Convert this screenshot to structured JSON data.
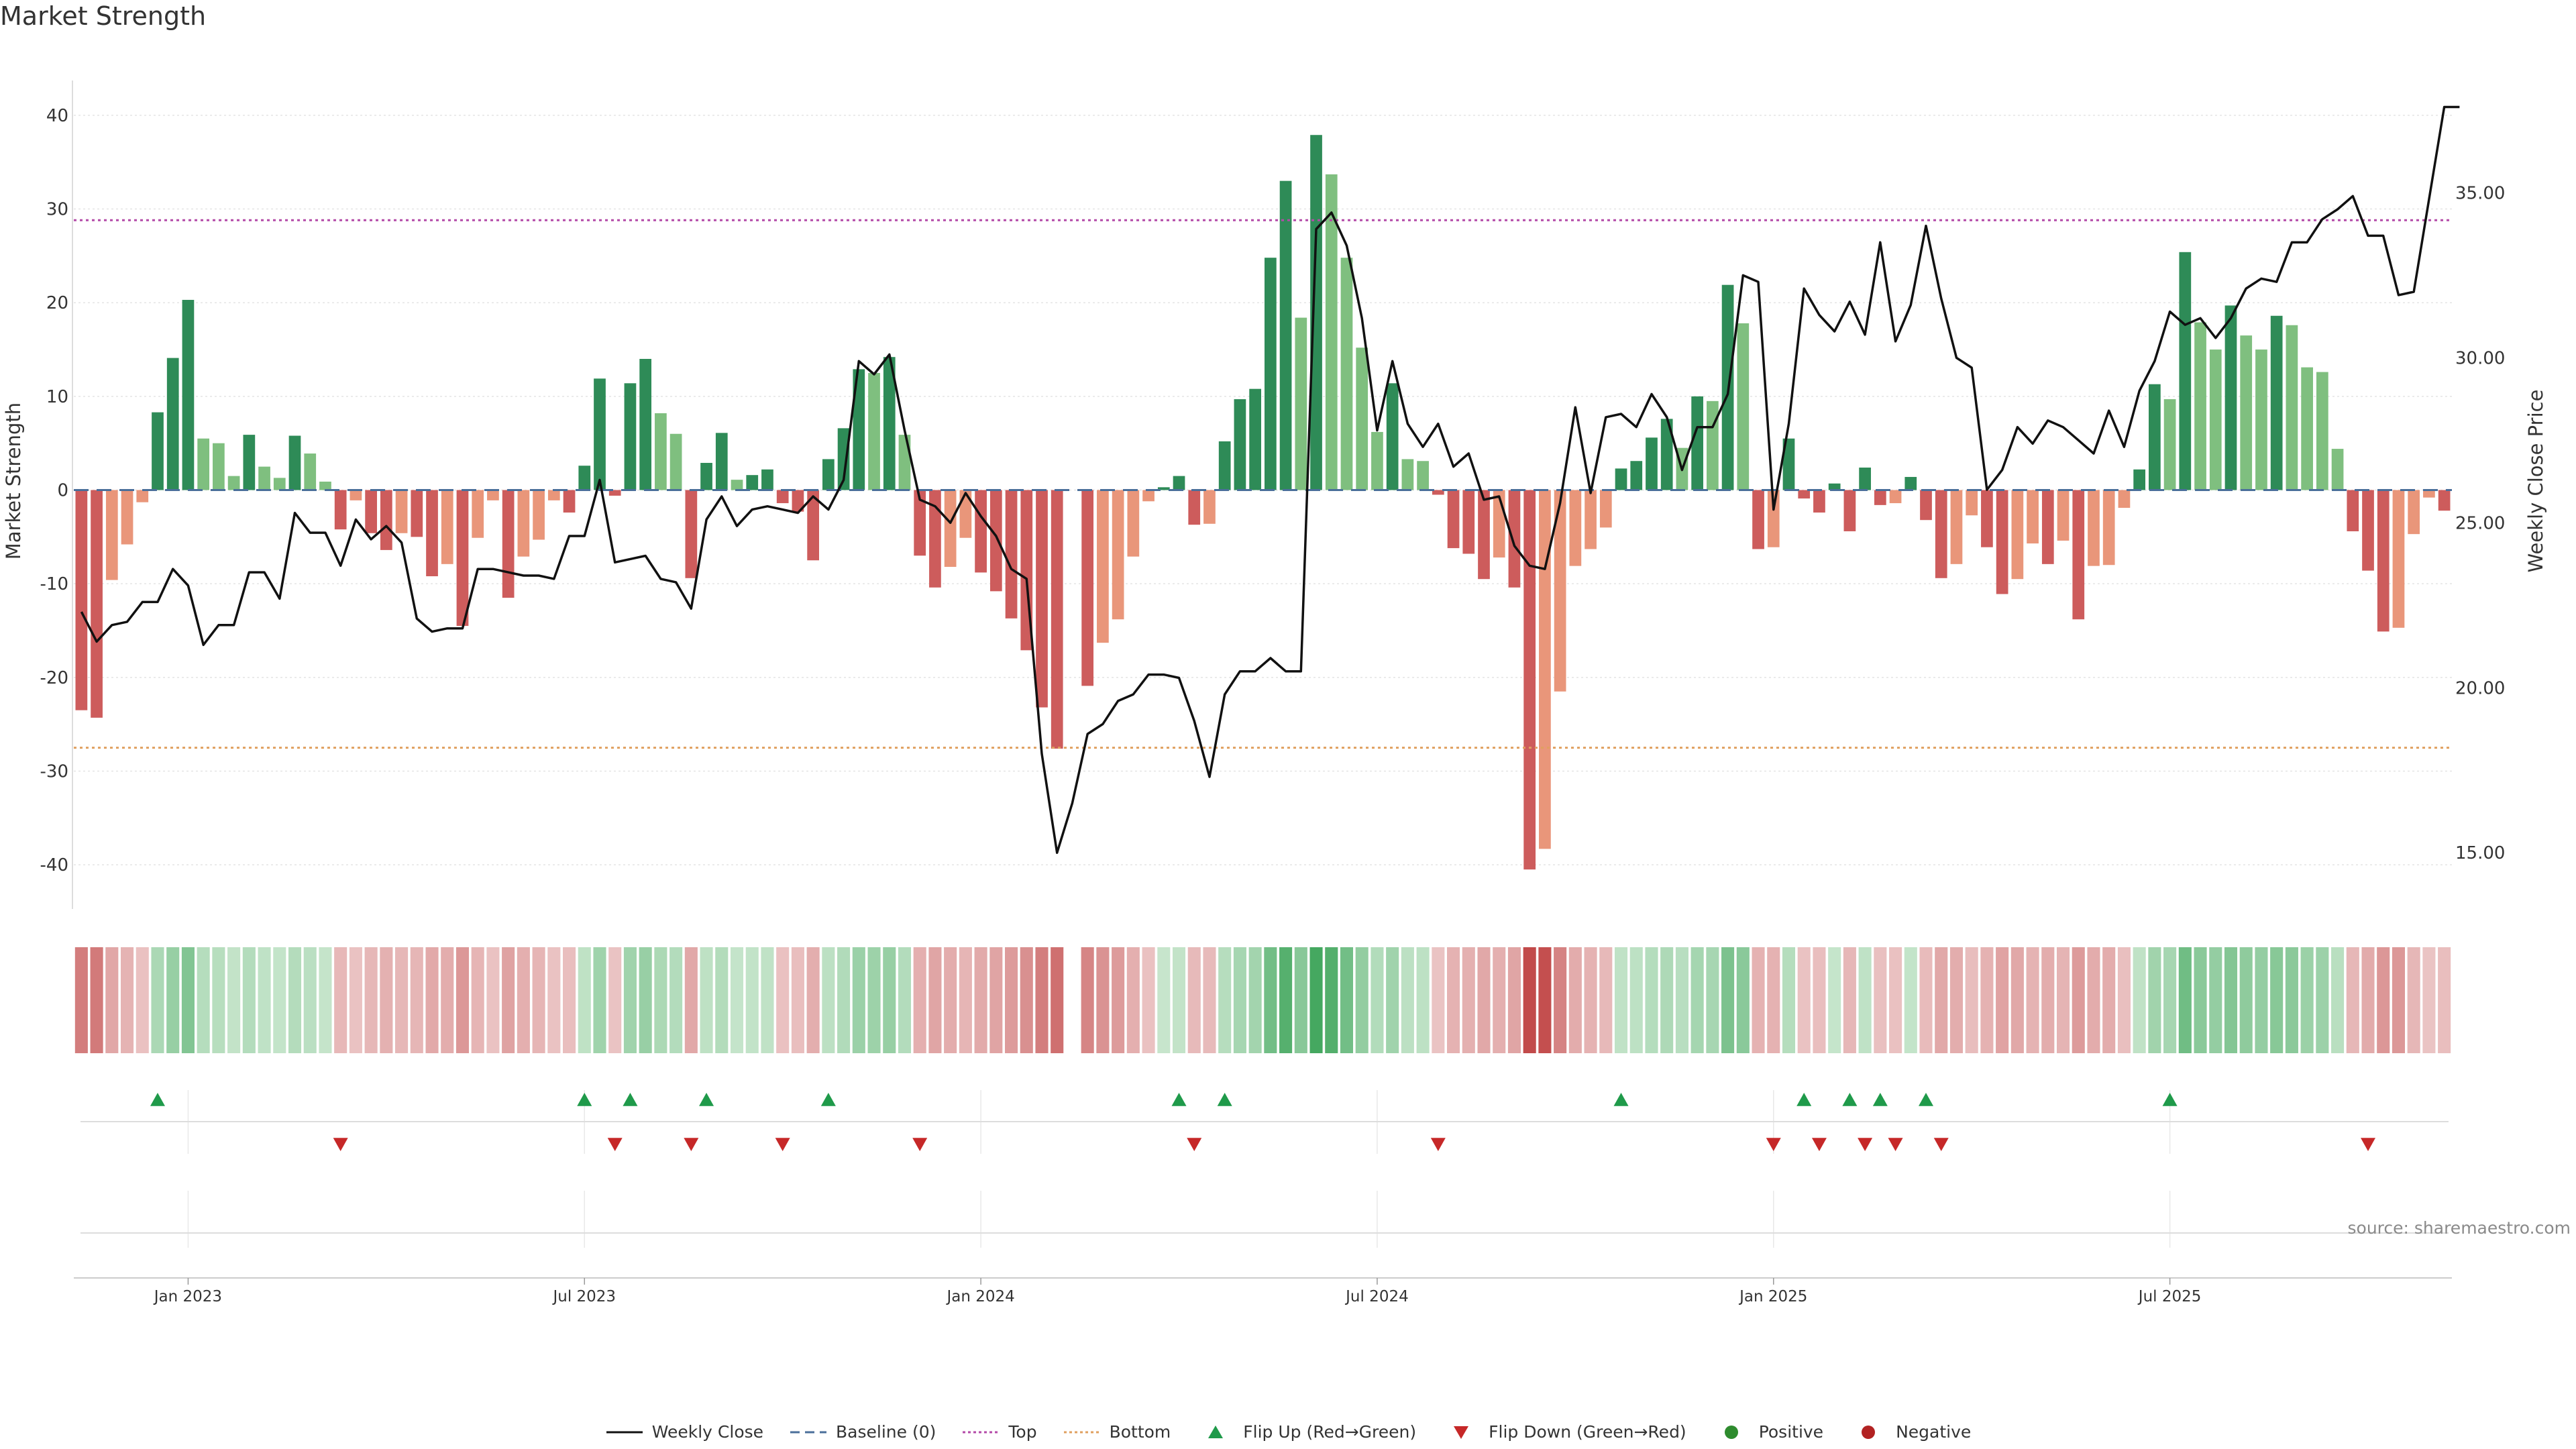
{
  "title": "Market Strength",
  "source": "source: sharemaestro.com",
  "legend": [
    {
      "label": "Weekly Close",
      "kind": "line-solid",
      "color": "#111111"
    },
    {
      "label": "Baseline (0)",
      "kind": "line-dash",
      "color": "#4a6f9a"
    },
    {
      "label": "Top",
      "kind": "line-dot",
      "color": "#b44aa8"
    },
    {
      "label": "Bottom",
      "kind": "line-dot",
      "color": "#e0a060"
    },
    {
      "label": "Flip Up (Red→Green)",
      "kind": "tri-up",
      "color": "#1f9a4a"
    },
    {
      "label": "Flip Down (Green→Red)",
      "kind": "tri-down",
      "color": "#c62828"
    },
    {
      "label": "Positive",
      "kind": "dot",
      "color": "#2e8b2e"
    },
    {
      "label": "Negative",
      "kind": "dot",
      "color": "#b22222"
    }
  ],
  "colors": {
    "pos_strong": "#2e8b57",
    "pos_weak": "#7fbf7f",
    "neg_strong": "#cd5c5c",
    "neg_weak": "#e9967a",
    "top_line": "#b44aa8",
    "bottom_line": "#e0a060",
    "baseline": "#4a6f9a",
    "price": "#111111",
    "flip_up": "#1f9a4a",
    "flip_down": "#c62828"
  },
  "chart_data": {
    "type": "bar",
    "ylabel": "Market Strength",
    "y2label": "Weekly Close Price",
    "ylim": [
      -44,
      43
    ],
    "y2lim": [
      13.5,
      38.2
    ],
    "yticks": [
      -40,
      -30,
      -20,
      -10,
      0,
      10,
      20,
      30,
      40
    ],
    "y2ticks": [
      "15.00",
      "20.00",
      "25.00",
      "30.00",
      "35.00"
    ],
    "xticks": [
      {
        "week": 7,
        "label": "Jan 2023"
      },
      {
        "week": 33,
        "label": "Jul 2023"
      },
      {
        "week": 59,
        "label": "Jan 2024"
      },
      {
        "week": 85,
        "label": "Jul 2024"
      },
      {
        "week": 111,
        "label": "Jan 2025"
      },
      {
        "week": 137,
        "label": "Jul 2025"
      }
    ],
    "top_level": 28.8,
    "bottom_level": -27.5,
    "baseline": 0,
    "strength": [
      -23.5,
      -24.3,
      -9.6,
      -5.8,
      -1.3,
      8.3,
      14.1,
      20.3,
      5.5,
      5.0,
      1.5,
      5.9,
      2.5,
      1.3,
      5.8,
      3.9,
      0.9,
      -4.2,
      -1.1,
      -4.6,
      -6.4,
      -4.6,
      -5.0,
      -9.2,
      -7.9,
      -14.5,
      -5.1,
      -1.1,
      -11.5,
      -7.1,
      -5.3,
      -1.1,
      -2.4,
      2.6,
      11.9,
      -0.6,
      11.4,
      14.0,
      8.2,
      6.0,
      -9.4,
      2.9,
      6.1,
      1.1,
      1.6,
      2.2,
      -1.4,
      -2.3,
      -7.5,
      3.3,
      6.6,
      12.9,
      12.5,
      14.2,
      5.9,
      -7.0,
      -10.4,
      -8.2,
      -5.1,
      -8.8,
      -10.8,
      -13.7,
      -17.1,
      -23.2,
      -27.6,
      0,
      -20.9,
      -16.3,
      -13.8,
      -7.1,
      -1.2,
      0.3,
      1.5,
      -3.7,
      -3.6,
      5.2,
      9.7,
      10.8,
      24.8,
      33.0,
      18.4,
      37.9,
      33.7,
      24.8,
      15.2,
      6.2,
      11.4,
      3.3,
      3.1,
      -0.5,
      -6.2,
      -6.8,
      -9.5,
      -7.2,
      -10.4,
      -40.5,
      -38.3,
      -21.5,
      -8.1,
      -6.3,
      -4.0,
      2.3,
      3.1,
      5.6,
      7.6,
      4.5,
      10.0,
      9.5,
      21.9,
      17.8,
      -6.3,
      -6.1,
      5.5,
      -0.9,
      -2.4,
      0.7,
      -4.4,
      2.4,
      -1.6,
      -1.4,
      1.4,
      -3.2,
      -9.4,
      -7.9,
      -2.7,
      -6.1,
      -11.1,
      -9.5,
      -5.7,
      -7.9,
      -5.4,
      -13.8,
      -8.1,
      -8.0,
      -1.9,
      2.2,
      11.3,
      9.7,
      25.4,
      17.9,
      15.0,
      19.7,
      16.5,
      15.0,
      18.6,
      17.6,
      13.1,
      12.6,
      4.4,
      -4.4,
      -8.6,
      -15.1,
      -14.7,
      -4.7,
      -0.8,
      -2.2
    ],
    "close": [
      22.3,
      21.4,
      21.9,
      22.0,
      22.6,
      22.6,
      23.6,
      23.1,
      21.3,
      21.9,
      21.9,
      23.5,
      23.5,
      22.7,
      25.3,
      24.7,
      24.7,
      23.7,
      25.1,
      24.5,
      24.9,
      24.4,
      22.1,
      21.7,
      21.8,
      21.8,
      23.6,
      23.6,
      23.5,
      23.4,
      23.4,
      23.3,
      24.6,
      24.6,
      26.3,
      23.8,
      23.9,
      24.0,
      23.3,
      23.2,
      22.4,
      25.1,
      25.8,
      24.9,
      25.4,
      25.5,
      25.4,
      25.3,
      25.8,
      25.4,
      26.3,
      29.9,
      29.5,
      30.1,
      27.8,
      25.7,
      25.5,
      25.0,
      25.9,
      25.2,
      24.6,
      23.6,
      23.3,
      18.0,
      15.0,
      16.5,
      18.6,
      18.9,
      19.6,
      19.8,
      20.4,
      20.4,
      20.3,
      19.0,
      17.3,
      19.8,
      20.5,
      20.5,
      20.9,
      20.5,
      20.5,
      33.9,
      34.4,
      33.4,
      31.2,
      27.8,
      29.9,
      28.0,
      27.3,
      28.0,
      26.7,
      27.1,
      25.7,
      25.8,
      24.3,
      23.7,
      23.6,
      25.6,
      28.5,
      25.9,
      28.2,
      28.3,
      27.9,
      28.9,
      28.2,
      26.6,
      27.9,
      27.9,
      28.9,
      32.5,
      32.3,
      25.4,
      28.0,
      32.1,
      31.3,
      30.8,
      31.7,
      30.7,
      33.5,
      30.5,
      31.6,
      34.0,
      31.8,
      30.0,
      29.7,
      26.0,
      26.6,
      27.9,
      27.4,
      28.1,
      27.9,
      27.5,
      27.1,
      28.4,
      27.3,
      29.0,
      29.9,
      31.4,
      31.0,
      31.2,
      30.6,
      31.2,
      32.1,
      32.4,
      32.3,
      33.5,
      33.5,
      34.2,
      34.5,
      34.9,
      33.7,
      33.7,
      31.9,
      32.0,
      34.8,
      37.6,
      37.6
    ],
    "flip_up_weeks": [
      5,
      33,
      36,
      41,
      49,
      72,
      75,
      101,
      113,
      116,
      118,
      121,
      137
    ],
    "flip_down_weeks": [
      17,
      35,
      40,
      46,
      55,
      73,
      89,
      111,
      114,
      117,
      119,
      122,
      150
    ]
  }
}
